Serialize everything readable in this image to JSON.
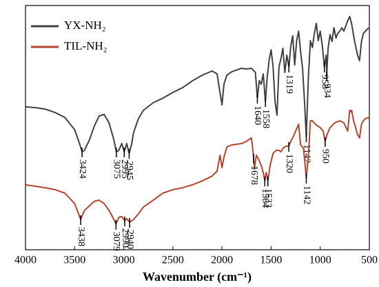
{
  "chart_data": {
    "type": "line",
    "xlabel": "Wavenumber (cm⁻¹)",
    "xlim": [
      4000,
      500
    ],
    "xticks": [
      4000,
      3500,
      3000,
      2500,
      2000,
      1500,
      1000,
      500
    ],
    "ylim": [
      0,
      100
    ],
    "legend": "upper left",
    "series": [
      {
        "name": "YX-NH₂",
        "color": "#404040",
        "x": [
          4000,
          3900,
          3800,
          3700,
          3600,
          3500,
          3450,
          3424,
          3400,
          3350,
          3300,
          3250,
          3200,
          3150,
          3100,
          3075,
          3050,
          3020,
          2995,
          2970,
          2945,
          2920,
          2900,
          2850,
          2800,
          2700,
          2600,
          2500,
          2400,
          2300,
          2200,
          2100,
          2050,
          2000,
          1980,
          1950,
          1900,
          1800,
          1750,
          1700,
          1660,
          1640,
          1620,
          1600,
          1580,
          1558,
          1540,
          1520,
          1500,
          1480,
          1460,
          1440,
          1420,
          1400,
          1380,
          1360,
          1340,
          1319,
          1300,
          1280,
          1260,
          1240,
          1220,
          1200,
          1180,
          1160,
          1142,
          1120,
          1100,
          1080,
          1060,
          1040,
          1020,
          1000,
          980,
          958,
          940,
          934,
          920,
          900,
          880,
          860,
          840,
          820,
          800,
          780,
          760,
          720,
          700,
          680,
          650,
          620,
          600,
          580,
          560,
          540,
          520,
          500
        ],
        "values": [
          58.5,
          58.2,
          57.6,
          56.2,
          54.2,
          49.2,
          43.5,
          40.1,
          40.7,
          44.9,
          50.6,
          54.8,
          55.4,
          52,
          44.9,
          40.1,
          40.7,
          43.5,
          40.1,
          43.5,
          39.5,
          43.2,
          48,
          53.7,
          57.1,
          60.2,
          62.1,
          64.4,
          66.4,
          69.2,
          71.5,
          73.2,
          72,
          59.3,
          67.8,
          71.5,
          72.9,
          74.3,
          74,
          74.3,
          72.6,
          62.1,
          69.2,
          67.8,
          72,
          60.7,
          70.6,
          77.7,
          81.9,
          74.9,
          60.7,
          55.1,
          74.9,
          78.2,
          82.5,
          72.6,
          79.7,
          74.9,
          83.3,
          87.6,
          75.7,
          85.6,
          89.5,
          81.1,
          74.3,
          60.7,
          46.3,
          71.2,
          85.6,
          82.8,
          88.4,
          92.7,
          85.6,
          89.5,
          83.9,
          74.9,
          79.7,
          71.2,
          82.5,
          88.1,
          85.3,
          90.9,
          86.7,
          88.7,
          89.5,
          90.9,
          89.5,
          93.8,
          95.5,
          92.4,
          85.3,
          79.7,
          77.4,
          85.3,
          88.7,
          89.5,
          90.4,
          90.9
        ],
        "peaks": [
          3424,
          3075,
          2995,
          2945,
          1640,
          1558,
          1319,
          1142,
          958,
          934
        ]
      },
      {
        "name": "TIL-NH₂",
        "color": "#b5432f",
        "x": [
          4000,
          3900,
          3800,
          3700,
          3600,
          3500,
          3438,
          3400,
          3300,
          3250,
          3200,
          3150,
          3100,
          3079,
          3050,
          3020,
          2990,
          2970,
          2940,
          2900,
          2850,
          2800,
          2700,
          2600,
          2500,
          2400,
          2300,
          2200,
          2100,
          2050,
          2020,
          2000,
          1980,
          1950,
          1900,
          1800,
          1750,
          1700,
          1680,
          1670,
          1650,
          1630,
          1600,
          1580,
          1564,
          1550,
          1533,
          1510,
          1480,
          1450,
          1420,
          1400,
          1380,
          1350,
          1320,
          1300,
          1280,
          1250,
          1220,
          1200,
          1170,
          1142,
          1120,
          1100,
          1080,
          1050,
          1000,
          970,
          950,
          930,
          900,
          850,
          800,
          760,
          720,
          700,
          690,
          680,
          660,
          640,
          620,
          600,
          580,
          560,
          540,
          500
        ],
        "values": [
          26.6,
          26,
          25.4,
          24.6,
          23.2,
          18.9,
          12.4,
          16.1,
          19.8,
          20.3,
          18.9,
          16.1,
          12.4,
          10.5,
          13.3,
          13.6,
          11.9,
          12.7,
          11.3,
          12.4,
          14.7,
          17.5,
          20.3,
          23.2,
          24.6,
          25.4,
          26.6,
          28.2,
          30.2,
          32.2,
          38.7,
          33.6,
          37.9,
          42.1,
          42.9,
          43.5,
          44.4,
          45.8,
          38.7,
          33,
          38.7,
          37.3,
          34.5,
          31.6,
          28.2,
          31.6,
          28.2,
          34.5,
          39.5,
          40.7,
          40.7,
          40.1,
          41.5,
          42.4,
          42.4,
          44.4,
          45.8,
          48.6,
          51.4,
          42.9,
          41.5,
          29.4,
          38.7,
          52.8,
          52.8,
          51.4,
          50,
          48.6,
          44.4,
          47.2,
          50,
          52,
          52.8,
          52,
          48.6,
          57.1,
          56.5,
          57.1,
          52.8,
          50,
          47.2,
          45.8,
          51.4,
          52.8,
          53.7,
          54.2
        ],
        "peaks": [
          3438,
          3079,
          2990,
          2940,
          1678,
          1564,
          1533,
          1320,
          1142,
          950
        ]
      }
    ]
  }
}
